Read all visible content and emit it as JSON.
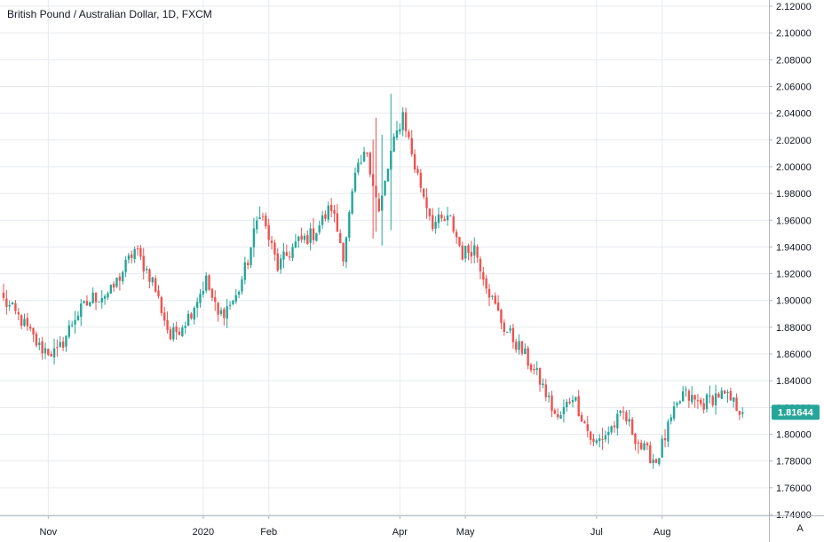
{
  "header": {
    "title": "British Pound / Australian Dollar, 1D, FXCM"
  },
  "controls": {
    "auto_scale_label": "A"
  },
  "colors": {
    "up": "#26a69a",
    "down": "#ef5350",
    "grid": "#e6eaef",
    "axis_line": "#b2b5be",
    "last_price_bg": "#26a69a"
  },
  "chart_data": {
    "type": "candlestick",
    "title": "British Pound / Australian Dollar, 1D, FXCM",
    "ylim": [
      1.742,
      2.124
    ],
    "y_ticks": [
      "2.12000",
      "2.10000",
      "2.08000",
      "2.06000",
      "2.04000",
      "2.02000",
      "2.00000",
      "1.98000",
      "1.96000",
      "1.94000",
      "1.92000",
      "1.90000",
      "1.88000",
      "1.86000",
      "1.84000",
      "1.82000",
      "1.80000",
      "1.78000",
      "1.76000",
      "1.74000"
    ],
    "x_ticks": [
      {
        "label": "Nov",
        "index": 15
      },
      {
        "label": "2020",
        "index": 67
      },
      {
        "label": "Feb",
        "index": 89
      },
      {
        "label": "Apr",
        "index": 133
      },
      {
        "label": "May",
        "index": 155
      },
      {
        "label": "Jul",
        "index": 199
      },
      {
        "label": "Aug",
        "index": 221
      }
    ],
    "last_price": 1.81644,
    "last_price_label": "1.81644",
    "grid": true,
    "keypoints": [
      [
        0,
        1.9
      ],
      [
        6,
        1.885
      ],
      [
        12,
        1.865
      ],
      [
        18,
        1.86
      ],
      [
        24,
        1.888
      ],
      [
        30,
        1.902
      ],
      [
        36,
        1.906
      ],
      [
        44,
        1.938
      ],
      [
        50,
        1.915
      ],
      [
        56,
        1.872
      ],
      [
        62,
        1.888
      ],
      [
        68,
        1.915
      ],
      [
        72,
        1.888
      ],
      [
        78,
        1.902
      ],
      [
        82,
        1.93
      ],
      [
        86,
        1.968
      ],
      [
        92,
        1.925
      ],
      [
        98,
        1.942
      ],
      [
        104,
        1.95
      ],
      [
        110,
        1.97
      ],
      [
        114,
        1.935
      ],
      [
        118,
        1.992
      ],
      [
        122,
        2.012
      ],
      [
        126,
        1.965
      ],
      [
        130,
        2.01
      ],
      [
        134,
        2.04
      ],
      [
        138,
        2.0
      ],
      [
        144,
        1.958
      ],
      [
        150,
        1.96
      ],
      [
        154,
        1.935
      ],
      [
        158,
        1.94
      ],
      [
        164,
        1.9
      ],
      [
        168,
        1.88
      ],
      [
        174,
        1.862
      ],
      [
        180,
        1.84
      ],
      [
        186,
        1.81
      ],
      [
        191,
        1.83
      ],
      [
        198,
        1.792
      ],
      [
        202,
        1.8
      ],
      [
        208,
        1.815
      ],
      [
        214,
        1.79
      ],
      [
        219,
        1.78
      ],
      [
        224,
        1.81
      ],
      [
        228,
        1.83
      ],
      [
        234,
        1.822
      ],
      [
        240,
        1.83
      ],
      [
        244,
        1.825
      ],
      [
        248,
        1.817
      ]
    ]
  }
}
